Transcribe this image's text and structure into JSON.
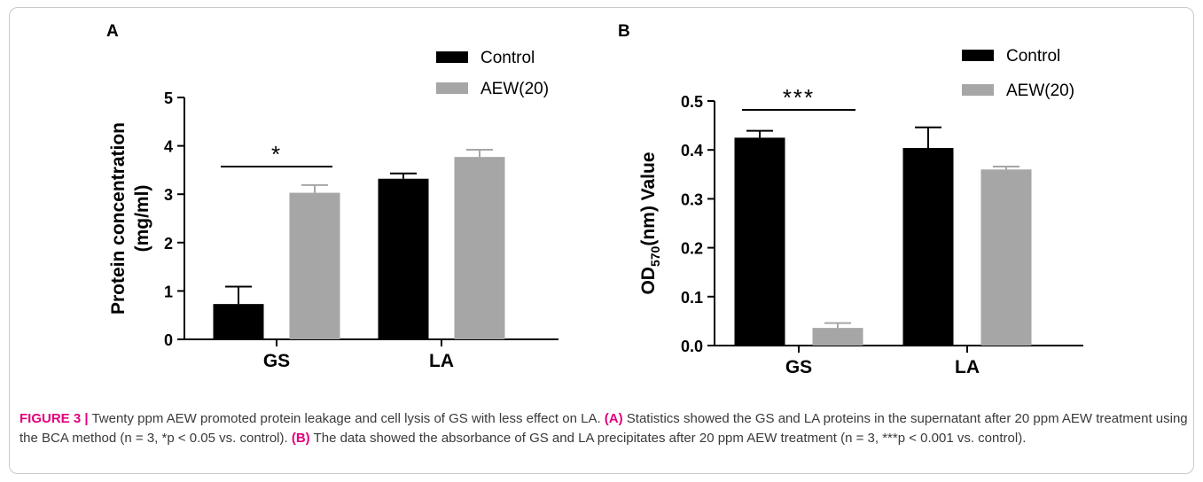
{
  "chart_data": [
    {
      "panel": "A",
      "type": "bar",
      "categories": [
        "GS",
        "LA"
      ],
      "ylabel_line1": "Protein concentration",
      "ylabel_line2": "(mg/ml)",
      "ylim": [
        0,
        5
      ],
      "yticks": [
        "0",
        "1",
        "2",
        "3",
        "4",
        "5"
      ],
      "yticks_values": [
        0,
        1,
        2,
        3,
        4,
        5
      ],
      "series": [
        {
          "name": "Control",
          "values": [
            0.73,
            3.32
          ],
          "errors": [
            0.36,
            0.11
          ],
          "color": "#000000"
        },
        {
          "name": "AEW(20)",
          "values": [
            3.03,
            3.77
          ],
          "errors": [
            0.16,
            0.15
          ],
          "color": "#a6a6a6"
        }
      ],
      "significance": [
        {
          "category": "GS",
          "label": "*"
        }
      ],
      "legend": "top-right",
      "grid": false
    },
    {
      "panel": "B",
      "type": "bar",
      "categories": [
        "GS",
        "LA"
      ],
      "ylabel_prefix": "OD",
      "ylabel_sub": "570",
      "ylabel_suffix": "(nm) Value",
      "ylim": [
        0,
        0.5
      ],
      "yticks": [
        "0.0",
        "0.1",
        "0.2",
        "0.3",
        "0.4",
        "0.5"
      ],
      "yticks_values": [
        0,
        0.1,
        0.2,
        0.3,
        0.4,
        0.5
      ],
      "series": [
        {
          "name": "Control",
          "values": [
            0.425,
            0.404
          ],
          "errors": [
            0.014,
            0.042
          ],
          "color": "#000000"
        },
        {
          "name": "AEW(20)",
          "values": [
            0.036,
            0.36
          ],
          "errors": [
            0.01,
            0.006
          ],
          "color": "#a6a6a6"
        }
      ],
      "significance": [
        {
          "category": "GS",
          "label": "***"
        }
      ],
      "legend": "top-right",
      "grid": false
    }
  ],
  "caption": {
    "figure_label": "FIGURE 3 |",
    "intro": " Twenty ppm AEW promoted protein leakage and cell lysis of GS with less effect on LA. ",
    "ref_a": "(A)",
    "text_a": " Statistics showed the GS and LA proteins in the supernatant after 20 ppm AEW treatment using the BCA method (n = 3, *p < 0.05 vs. control). ",
    "ref_b": "(B)",
    "text_b": " The data showed the absorbance of GS and LA precipitates after 20 ppm AEW treatment (n = 3, ***p < 0.001 vs. control)."
  }
}
